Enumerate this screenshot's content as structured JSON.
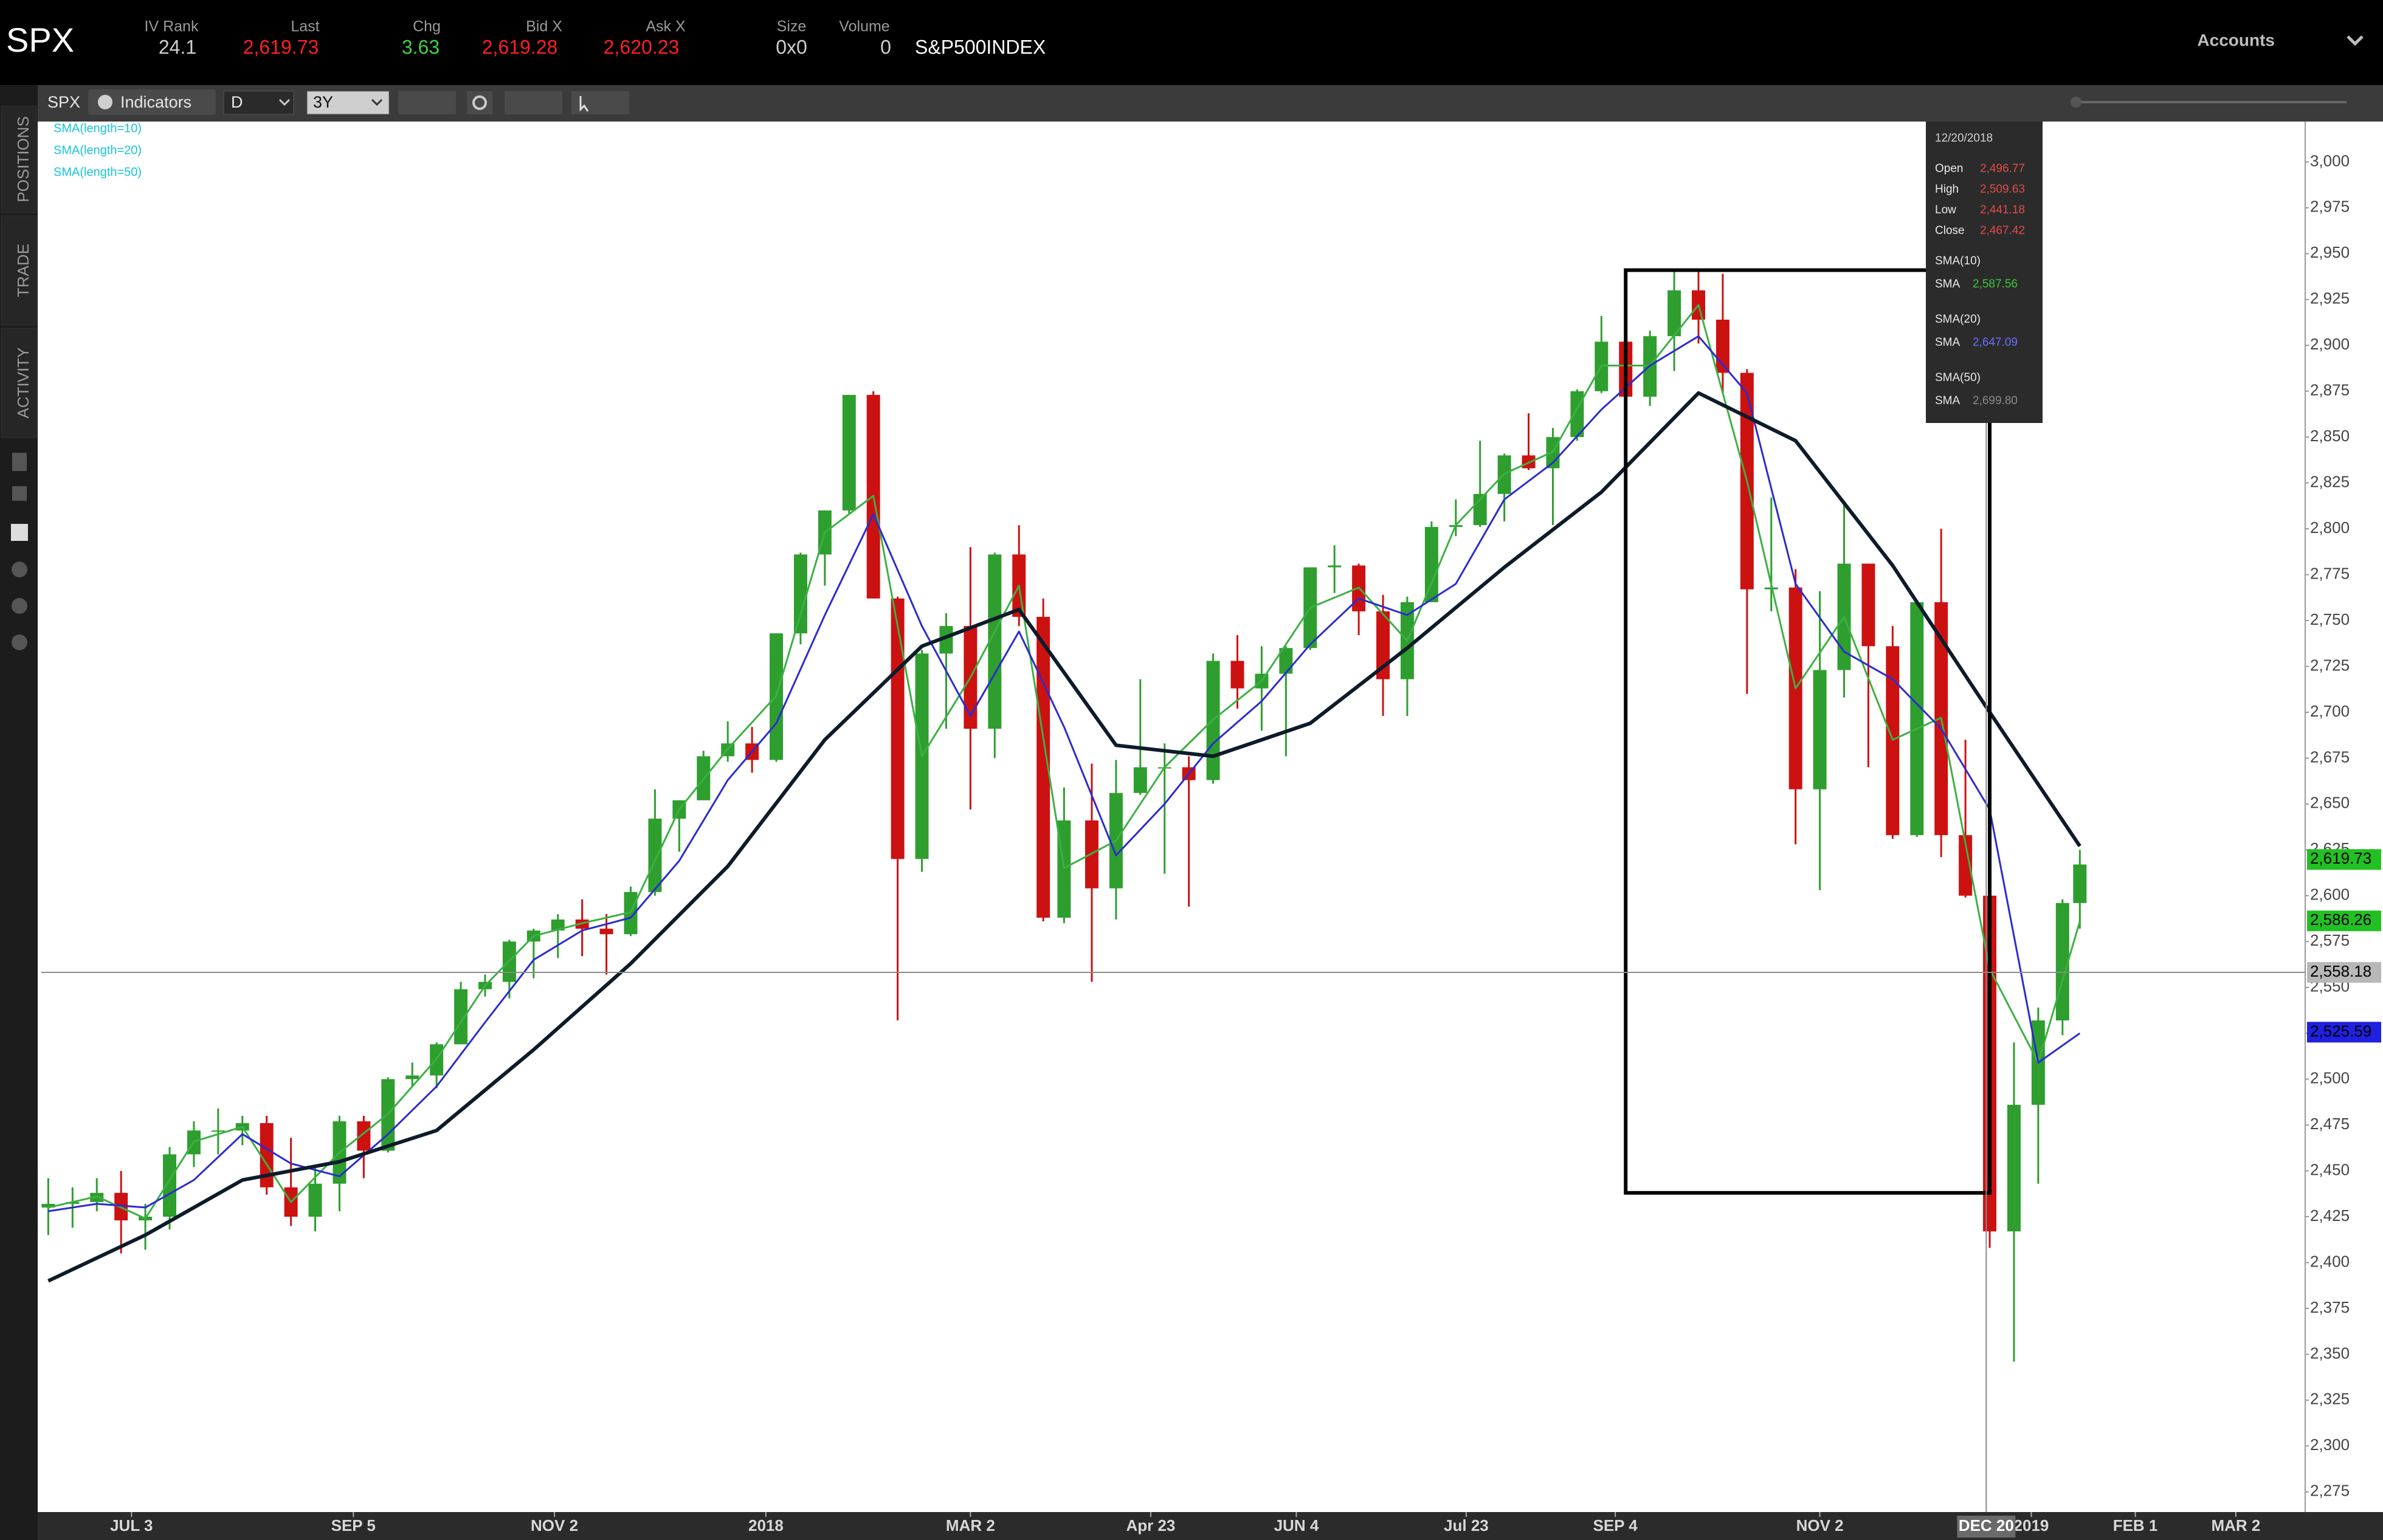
{
  "header": {
    "symbol": "SPX",
    "fields": [
      {
        "label": "IV Rank",
        "value": 24.1
      },
      {
        "label": "Last",
        "value": "2,619.73"
      },
      {
        "label": "Chg",
        "value": 3.63
      },
      {
        "label": "Bid X",
        "value": "2,619.28"
      },
      {
        "label": "Ask X",
        "value": "2,620.23"
      },
      {
        "label": "Size",
        "value": "0x0"
      },
      {
        "label": "Volume",
        "value": 0
      }
    ],
    "description": "S&P500INDEX",
    "accounts": "Accounts"
  },
  "toolbar": {
    "symbol": "SPX",
    "indicators": "Indicators",
    "aggregation": "D",
    "period": "3Y"
  },
  "sidebar": [
    "POSITIONS",
    "TRADE",
    "ACTIVITY"
  ],
  "tooltip": {
    "date": "12/20/2018",
    "rows": [
      {
        "label": "Open",
        "value": "2,496.77"
      },
      {
        "label": "High",
        "value": "2,509.63"
      },
      {
        "label": "Low",
        "value": "2,441.18"
      },
      {
        "label": "Close",
        "value": "2,467.42"
      }
    ],
    "sma": [
      {
        "title": "SMA(10)",
        "label": "SMA",
        "value": "2,587.56"
      },
      {
        "title": "SMA(20)",
        "label": "SMA",
        "value": "2,647.09"
      },
      {
        "title": "SMA(50)",
        "label": "SMA",
        "value": "2,699.80"
      }
    ]
  },
  "chart_data": {
    "type": "candlestick",
    "x": [
      "2017-06-09",
      "2017-06-16",
      "2017-06-23",
      "2017-06-30",
      "2017-07-07",
      "2017-07-14",
      "2017-07-21",
      "2017-07-28",
      "2017-08-04",
      "2017-08-11",
      "2017-08-18",
      "2017-08-25",
      "2017-09-01",
      "2017-09-08",
      "2017-09-15",
      "2017-09-22",
      "2017-09-29",
      "2017-10-06",
      "2017-10-13",
      "2017-10-20",
      "2017-10-27",
      "2017-11-03",
      "2017-11-10",
      "2017-11-17",
      "2017-11-24",
      "2017-12-01",
      "2017-12-08",
      "2017-12-15",
      "2017-12-22",
      "2017-12-29",
      "2018-01-05",
      "2018-01-12",
      "2018-01-19",
      "2018-01-26",
      "2018-02-02",
      "2018-02-09",
      "2018-02-16",
      "2018-02-23",
      "2018-03-02",
      "2018-03-09",
      "2018-03-16",
      "2018-03-23",
      "2018-03-29",
      "2018-04-06",
      "2018-04-13",
      "2018-04-20",
      "2018-04-27",
      "2018-05-04",
      "2018-05-11",
      "2018-05-18",
      "2018-05-25",
      "2018-06-01",
      "2018-06-08",
      "2018-06-15",
      "2018-06-22",
      "2018-06-29",
      "2018-07-06",
      "2018-07-13",
      "2018-07-20",
      "2018-07-27",
      "2018-08-03",
      "2018-08-10",
      "2018-08-17",
      "2018-08-24",
      "2018-08-31",
      "2018-09-07",
      "2018-09-14",
      "2018-09-21",
      "2018-09-28",
      "2018-10-05",
      "2018-10-12",
      "2018-10-19",
      "2018-10-26",
      "2018-11-02",
      "2018-11-09",
      "2018-11-16",
      "2018-11-23",
      "2018-11-30",
      "2018-12-07",
      "2018-12-14",
      "2018-12-21",
      "2018-12-28",
      "2019-01-04",
      "2019-01-11",
      "2019-01-16"
    ],
    "open": [
      2430,
      2432,
      2433,
      2438,
      2423,
      2425,
      2459,
      2472,
      2472,
      2476,
      2441,
      2425,
      2443,
      2477,
      2461,
      2500,
      2502,
      2519,
      2549,
      2553,
      2575,
      2581,
      2587,
      2582,
      2579,
      2602,
      2642,
      2652,
      2676,
      2683,
      2674,
      2743,
      2786,
      2810,
      2873,
      2762,
      2620,
      2732,
      2747,
      2691,
      2786,
      2752,
      2588,
      2641,
      2604,
      2656,
      2670,
      2670,
      2663,
      2728,
      2713,
      2721,
      2735,
      2779,
      2780,
      2755,
      2718,
      2760,
      2801,
      2802,
      2819,
      2840,
      2833,
      2850,
      2875,
      2902,
      2872,
      2905,
      2930,
      2914,
      2885,
      2767,
      2768,
      2658,
      2723,
      2781,
      2736,
      2633,
      2760,
      2633,
      2600,
      2417,
      2486,
      2532,
      2596
    ],
    "high": [
      2446,
      2441,
      2446,
      2450,
      2432,
      2463,
      2477,
      2484,
      2480,
      2480,
      2468,
      2453,
      2480,
      2480,
      2501,
      2509,
      2520,
      2553,
      2557,
      2576,
      2582,
      2590,
      2598,
      2590,
      2605,
      2658,
      2652,
      2679,
      2695,
      2692,
      2743,
      2787,
      2810,
      2873,
      2875,
      2763,
      2734,
      2754,
      2790,
      2787,
      2802,
      2762,
      2659,
      2672,
      2674,
      2718,
      2683,
      2676,
      2732,
      2742,
      2736,
      2736,
      2779,
      2791,
      2781,
      2764,
      2763,
      2804,
      2816,
      2848,
      2841,
      2863,
      2855,
      2876,
      2916,
      2911,
      2908,
      2941,
      2940,
      2939,
      2887,
      2817,
      2778,
      2766,
      2815,
      2781,
      2747,
      2760,
      2800,
      2685,
      2607,
      2520,
      2539,
      2598,
      2625
    ],
    "low": [
      2415,
      2419,
      2428,
      2405,
      2407,
      2418,
      2452,
      2459,
      2464,
      2437,
      2420,
      2417,
      2428,
      2446,
      2460,
      2496,
      2495,
      2519,
      2545,
      2544,
      2555,
      2566,
      2567,
      2557,
      2578,
      2600,
      2624,
      2652,
      2673,
      2667,
      2673,
      2737,
      2769,
      2808,
      2762,
      2532,
      2613,
      2691,
      2647,
      2675,
      2747,
      2586,
      2585,
      2553,
      2587,
      2655,
      2612,
      2594,
      2661,
      2702,
      2690,
      2676,
      2734,
      2765,
      2742,
      2698,
      2698,
      2760,
      2796,
      2801,
      2804,
      2832,
      2802,
      2848,
      2874,
      2864,
      2867,
      2886,
      2901,
      2874,
      2710,
      2755,
      2628,
      2603,
      2708,
      2670,
      2631,
      2632,
      2621,
      2599,
      2408,
      2346,
      2443,
      2524,
      2582
    ],
    "close": [
      2432,
      2433,
      2438,
      2423,
      2425,
      2459,
      2472,
      2472,
      2476,
      2441,
      2425,
      2443,
      2477,
      2461,
      2500,
      2502,
      2519,
      2549,
      2553,
      2575,
      2581,
      2587,
      2582,
      2579,
      2602,
      2642,
      2652,
      2676,
      2683,
      2674,
      2743,
      2786,
      2810,
      2873,
      2762,
      2620,
      2732,
      2747,
      2691,
      2786,
      2752,
      2588,
      2641,
      2604,
      2656,
      2670,
      2670,
      2663,
      2728,
      2713,
      2721,
      2735,
      2779,
      2780,
      2755,
      2718,
      2760,
      2801,
      2802,
      2819,
      2840,
      2833,
      2850,
      2875,
      2902,
      2872,
      2905,
      2930,
      2914,
      2885,
      2767,
      2768,
      2658,
      2723,
      2781,
      2736,
      2633,
      2760,
      2633,
      2600,
      2417,
      2486,
      2532,
      2596,
      2617
    ],
    "up_color": "#2e9e2e",
    "down_color": "#cc1111",
    "legend_color": "#19c3d6",
    "series": [
      {
        "name": "SMA(length=10)",
        "color": "#3cb043",
        "width": 3,
        "x": [
          "2017-06-09",
          "2017-06-23",
          "2017-07-07",
          "2017-07-21",
          "2017-08-04",
          "2017-08-18",
          "2017-09-01",
          "2017-09-15",
          "2017-09-29",
          "2017-10-13",
          "2017-10-27",
          "2017-11-10",
          "2017-11-24",
          "2017-12-08",
          "2017-12-22",
          "2018-01-05",
          "2018-01-19",
          "2018-02-02",
          "2018-02-16",
          "2018-03-02",
          "2018-03-16",
          "2018-03-29",
          "2018-04-13",
          "2018-04-27",
          "2018-05-11",
          "2018-05-25",
          "2018-06-08",
          "2018-06-22",
          "2018-07-06",
          "2018-07-20",
          "2018-08-03",
          "2018-08-17",
          "2018-08-31",
          "2018-09-14",
          "2018-09-28",
          "2018-10-12",
          "2018-10-26",
          "2018-11-09",
          "2018-11-23",
          "2018-12-07",
          "2018-12-21",
          "2019-01-04",
          "2019-01-16"
        ],
        "values": [
          2430,
          2436,
          2424,
          2466,
          2474,
          2433,
          2460,
          2481,
          2511,
          2551,
          2578,
          2585,
          2591,
          2647,
          2680,
          2709,
          2798,
          2818,
          2676,
          2719,
          2769,
          2615,
          2630,
          2670,
          2696,
          2717,
          2757,
          2768,
          2739,
          2802,
          2830,
          2842,
          2889,
          2889,
          2922,
          2826,
          2713,
          2752,
          2685,
          2697,
          2560,
          2509,
          2586
        ]
      },
      {
        "name": "SMA(length=20)",
        "color": "#2b2bd0",
        "width": 3,
        "x": [
          "2017-06-09",
          "2017-06-23",
          "2017-07-07",
          "2017-07-21",
          "2017-08-04",
          "2017-08-18",
          "2017-09-01",
          "2017-09-15",
          "2017-09-29",
          "2017-10-13",
          "2017-10-27",
          "2017-11-10",
          "2017-11-24",
          "2017-12-08",
          "2017-12-22",
          "2018-01-05",
          "2018-01-19",
          "2018-02-02",
          "2018-02-16",
          "2018-03-02",
          "2018-03-16",
          "2018-03-29",
          "2018-04-13",
          "2018-04-27",
          "2018-05-11",
          "2018-05-25",
          "2018-06-08",
          "2018-06-22",
          "2018-07-06",
          "2018-07-20",
          "2018-08-03",
          "2018-08-17",
          "2018-08-31",
          "2018-09-14",
          "2018-09-28",
          "2018-10-12",
          "2018-10-26",
          "2018-11-09",
          "2018-11-23",
          "2018-12-07",
          "2018-12-21",
          "2019-01-04",
          "2019-01-16"
        ],
        "values": [
          2428,
          2432,
          2430,
          2445,
          2470,
          2454,
          2447,
          2470,
          2496,
          2531,
          2565,
          2581,
          2588,
          2619,
          2663,
          2694,
          2753,
          2808,
          2747,
          2698,
          2744,
          2692,
          2622,
          2650,
          2683,
          2706,
          2737,
          2762,
          2753,
          2770,
          2816,
          2836,
          2865,
          2889,
          2905,
          2874,
          2770,
          2733,
          2718,
          2691,
          2647,
          2509,
          2525
        ]
      },
      {
        "name": "SMA(length=50)",
        "color": "#0d1b2a",
        "width": 6,
        "x": [
          "2017-06-09",
          "2017-07-07",
          "2017-08-04",
          "2017-09-01",
          "2017-09-29",
          "2017-10-27",
          "2017-11-24",
          "2017-12-22",
          "2018-01-19",
          "2018-02-16",
          "2018-03-16",
          "2018-04-13",
          "2018-05-11",
          "2018-06-08",
          "2018-07-06",
          "2018-08-03",
          "2018-08-31",
          "2018-09-28",
          "2018-10-26",
          "2018-11-23",
          "2018-12-21",
          "2019-01-16"
        ],
        "values": [
          2390,
          2415,
          2445,
          2455,
          2472,
          2516,
          2563,
          2616,
          2685,
          2736,
          2756,
          2682,
          2676,
          2694,
          2735,
          2779,
          2820,
          2874,
          2848,
          2780,
          2700,
          2627
        ]
      }
    ],
    "xlim": [
      "2017-06-07",
      "2019-03-22"
    ],
    "xticks": [
      {
        "value": "2017-07-03",
        "label": "JUL 3"
      },
      {
        "value": "2017-09-05",
        "label": "SEP 5"
      },
      {
        "value": "2017-11-02",
        "label": "NOV 2"
      },
      {
        "value": "2018-01-02",
        "label": "2018"
      },
      {
        "value": "2018-03-02",
        "label": "MAR 2"
      },
      {
        "value": "2018-04-23",
        "label": "Apr 23"
      },
      {
        "value": "2018-06-04",
        "label": "JUN 4"
      },
      {
        "value": "2018-07-23",
        "label": "Jul 23"
      },
      {
        "value": "2018-09-04",
        "label": "SEP 4"
      },
      {
        "value": "2018-11-02",
        "label": "NOV 2"
      },
      {
        "value": "2019-01-02",
        "label": "2019"
      },
      {
        "value": "2019-02-01",
        "label": "FEB 1"
      },
      {
        "value": "2019-03-02",
        "label": "MAR 2"
      }
    ],
    "ylim": [
      2264,
      3022
    ],
    "yticks": [
      {
        "value": 2275,
        "label": "2,275"
      },
      {
        "value": 2300,
        "label": "2,300"
      },
      {
        "value": 2325,
        "label": "2,325"
      },
      {
        "value": 2350,
        "label": "2,350"
      },
      {
        "value": 2375,
        "label": "2,375"
      },
      {
        "value": 2400,
        "label": "2,400"
      },
      {
        "value": 2425,
        "label": "2,425"
      },
      {
        "value": 2450,
        "label": "2,450"
      },
      {
        "value": 2475,
        "label": "2,475"
      },
      {
        "value": 2500,
        "label": "2,500"
      },
      {
        "value": 2525,
        "label": "2,525"
      },
      {
        "value": 2550,
        "label": "2,550"
      },
      {
        "value": 2575,
        "label": "2,575"
      },
      {
        "value": 2600,
        "label": "2,600"
      },
      {
        "value": 2625,
        "label": "2,625"
      },
      {
        "value": 2650,
        "label": "2,650"
      },
      {
        "value": 2675,
        "label": "2,675"
      },
      {
        "value": 2700,
        "label": "2,700"
      },
      {
        "value": 2725,
        "label": "2,725"
      },
      {
        "value": 2750,
        "label": "2,750"
      },
      {
        "value": 2775,
        "label": "2,775"
      },
      {
        "value": 2800,
        "label": "2,800"
      },
      {
        "value": 2825,
        "label": "2,825"
      },
      {
        "value": 2850,
        "label": "2,850"
      },
      {
        "value": 2875,
        "label": "2,875"
      },
      {
        "value": 2900,
        "label": "2,900"
      },
      {
        "value": 2925,
        "label": "2,925"
      },
      {
        "value": 2950,
        "label": "2,950"
      },
      {
        "value": 2975,
        "label": "2,975"
      },
      {
        "value": 3000,
        "label": "3,000"
      }
    ],
    "grid": false,
    "crosshair": {
      "x": "2018-12-20",
      "x_label": "DEC 20",
      "y": 2558.18,
      "y_label": "2,558.18"
    },
    "price_markers": [
      {
        "value": 2619.73,
        "label": "2,619.73",
        "color": "#22c022"
      },
      {
        "value": 2586.26,
        "label": "2,586.26",
        "color": "#22c022"
      },
      {
        "value": 2525.59,
        "label": "2,525.59",
        "color": "#2020e0"
      }
    ],
    "annotation_rect": {
      "x": [
        "2018-09-07",
        "2018-12-21"
      ],
      "y": [
        2941,
        2438
      ]
    }
  }
}
